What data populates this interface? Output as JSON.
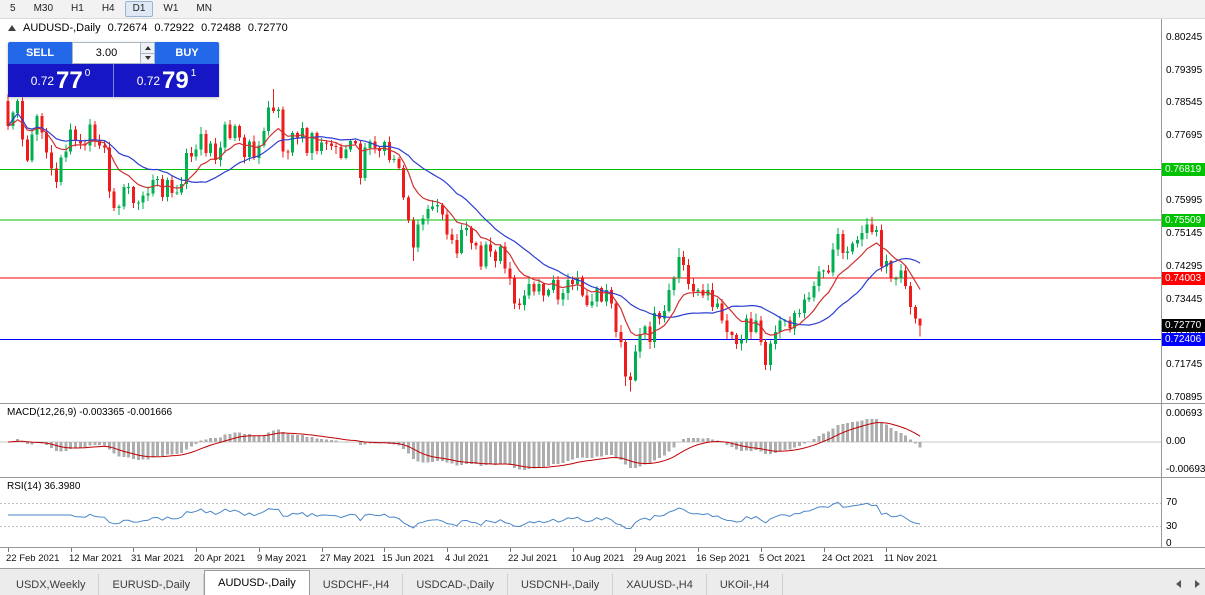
{
  "timeframes": {
    "items": [
      "5",
      "M30",
      "H1",
      "H4",
      "D1",
      "W1",
      "MN"
    ],
    "active": "D1"
  },
  "chart_header": {
    "symbol": "AUDUSD-,Daily",
    "open": "0.72674",
    "high": "0.72922",
    "low": "0.72488",
    "close": "0.72770"
  },
  "trade_panel": {
    "sell_label": "SELL",
    "buy_label": "BUY",
    "volume": "3.00",
    "sell_price": {
      "big_figure": "0.72",
      "pips": "77",
      "pipette": "0"
    },
    "buy_price": {
      "big_figure": "0.72",
      "pips": "79",
      "pipette": "1"
    }
  },
  "colors": {
    "bull": "#00b050",
    "bear": "#ee1c1c",
    "ma_fast": "#d03030",
    "ma_slow": "#2c3fd0",
    "macd_hist": "#adadad",
    "macd_signal": "#c00000",
    "rsi_line": "#4a86c8",
    "accent_button": "#2268e8",
    "price_box": "#1616c4"
  },
  "chart_data": {
    "type": "candlestick",
    "symbol": "AUDUSD-,Daily",
    "ohlc_display": {
      "open": "0.72674",
      "high": "0.72922",
      "low": "0.72488",
      "close": "0.72770"
    },
    "price_range": {
      "top": 0.8076,
      "bottom": 0.7076
    },
    "price_axis_ticks": [
      "0.80245",
      "0.79395",
      "0.78545",
      "0.77695",
      "0.76845",
      "0.75995",
      "0.75145",
      "0.74295",
      "0.73445",
      "0.72595",
      "0.71745",
      "0.70895"
    ],
    "price_badges": [
      {
        "value": "0.76819",
        "color": "#00c200"
      },
      {
        "value": "0.75509",
        "color": "#00c200"
      },
      {
        "value": "0.74003",
        "color": "#ff0000"
      },
      {
        "value": "0.72770",
        "color": "#000000"
      },
      {
        "value": "0.72406",
        "color": "#0000ff"
      }
    ],
    "hlines": [
      {
        "price": 0.76819,
        "color": "#00c200"
      },
      {
        "price": 0.75509,
        "color": "#00c200"
      },
      {
        "price": 0.74003,
        "color": "#ff0000"
      },
      {
        "price": 0.72406,
        "color": "#0000ff"
      }
    ],
    "x_dates": [
      "22 Feb 2021",
      "12 Mar 2021",
      "31 Mar 2021",
      "20 Apr 2021",
      "9 May 2021",
      "27 May 2021",
      "15 Jun 2021",
      "4 Jul 2021",
      "22 Jul 2021",
      "10 Aug 2021",
      "29 Aug 2021",
      "16 Sep 2021",
      "5 Oct 2021",
      "24 Oct 2021",
      "11 Nov 2021"
    ],
    "bars_per_label": 13,
    "first_open": 0.786,
    "closes": [
      0.7795,
      0.783,
      0.786,
      0.776,
      0.7706,
      0.7773,
      0.7821,
      0.7779,
      0.7727,
      0.7685,
      0.765,
      0.7714,
      0.7729,
      0.7786,
      0.7757,
      0.775,
      0.7745,
      0.78,
      0.7758,
      0.7745,
      0.774,
      0.7625,
      0.7583,
      0.7587,
      0.7637,
      0.7637,
      0.7595,
      0.7597,
      0.7615,
      0.762,
      0.7655,
      0.7658,
      0.7611,
      0.7655,
      0.7622,
      0.7623,
      0.7645,
      0.7726,
      0.7716,
      0.7735,
      0.7775,
      0.7725,
      0.775,
      0.7707,
      0.774,
      0.78,
      0.7765,
      0.7795,
      0.7766,
      0.7715,
      0.7755,
      0.7712,
      0.7745,
      0.7782,
      0.7843,
      0.7834,
      0.7838,
      0.7729,
      0.7727,
      0.7777,
      0.7765,
      0.779,
      0.7725,
      0.7777,
      0.7731,
      0.7752,
      0.775,
      0.7744,
      0.7741,
      0.7712,
      0.7735,
      0.7756,
      0.775,
      0.766,
      0.7739,
      0.7755,
      0.7738,
      0.773,
      0.7754,
      0.7707,
      0.771,
      0.7687,
      0.761,
      0.755,
      0.748,
      0.754,
      0.7555,
      0.758,
      0.7586,
      0.759,
      0.7565,
      0.7514,
      0.75,
      0.7465,
      0.7525,
      0.753,
      0.7492,
      0.7485,
      0.743,
      0.7488,
      0.747,
      0.7445,
      0.7483,
      0.7425,
      0.74,
      0.7335,
      0.733,
      0.7355,
      0.7385,
      0.7365,
      0.7385,
      0.7355,
      0.737,
      0.7396,
      0.7345,
      0.7362,
      0.7395,
      0.7385,
      0.74,
      0.7355,
      0.733,
      0.734,
      0.7375,
      0.734,
      0.737,
      0.7335,
      0.726,
      0.7235,
      0.7145,
      0.7135,
      0.721,
      0.7255,
      0.7275,
      0.7235,
      0.731,
      0.7295,
      0.7315,
      0.737,
      0.74,
      0.7455,
      0.7435,
      0.7385,
      0.7365,
      0.737,
      0.7355,
      0.737,
      0.7325,
      0.7335,
      0.729,
      0.726,
      0.7253,
      0.723,
      0.724,
      0.7295,
      0.726,
      0.729,
      0.7235,
      0.7175,
      0.723,
      0.726,
      0.729,
      0.729,
      0.727,
      0.731,
      0.731,
      0.7345,
      0.735,
      0.738,
      0.7418,
      0.742,
      0.7415,
      0.7475,
      0.7515,
      0.7465,
      0.747,
      0.749,
      0.75,
      0.7518,
      0.754,
      0.752,
      0.7525,
      0.743,
      0.7445,
      0.74,
      0.74,
      0.742,
      0.738,
      0.7325,
      0.7295,
      0.7277
    ],
    "wick_overrides": {
      "2": {
        "h": 0.7866
      },
      "55": {
        "h": 0.7891
      },
      "84": {
        "l": 0.7445
      },
      "128": {
        "l": 0.712
      },
      "129": {
        "l": 0.7106
      },
      "139": {
        "h": 0.7478
      },
      "178": {
        "h": 0.7556
      },
      "189": {
        "h": 0.7292,
        "l": 0.7249
      }
    },
    "indicators": {
      "macd": {
        "label": "MACD(12,26,9) -0.003365 -0.001666",
        "axis": [
          "0.00693",
          "0.00",
          "-0.00693"
        ]
      },
      "rsi": {
        "label": "RSI(14) 36.3980",
        "axis": [
          "70",
          "30",
          "0"
        ]
      }
    }
  },
  "tabs": {
    "items": [
      "USDX,Weekly",
      "EURUSD-,Daily",
      "AUDUSD-,Daily",
      "USDCHF-,H4",
      "USDCAD-,Daily",
      "USDCNH-,Daily",
      "XAUUSD-,H4",
      "UKOil-,H4"
    ],
    "active_index": 2
  }
}
